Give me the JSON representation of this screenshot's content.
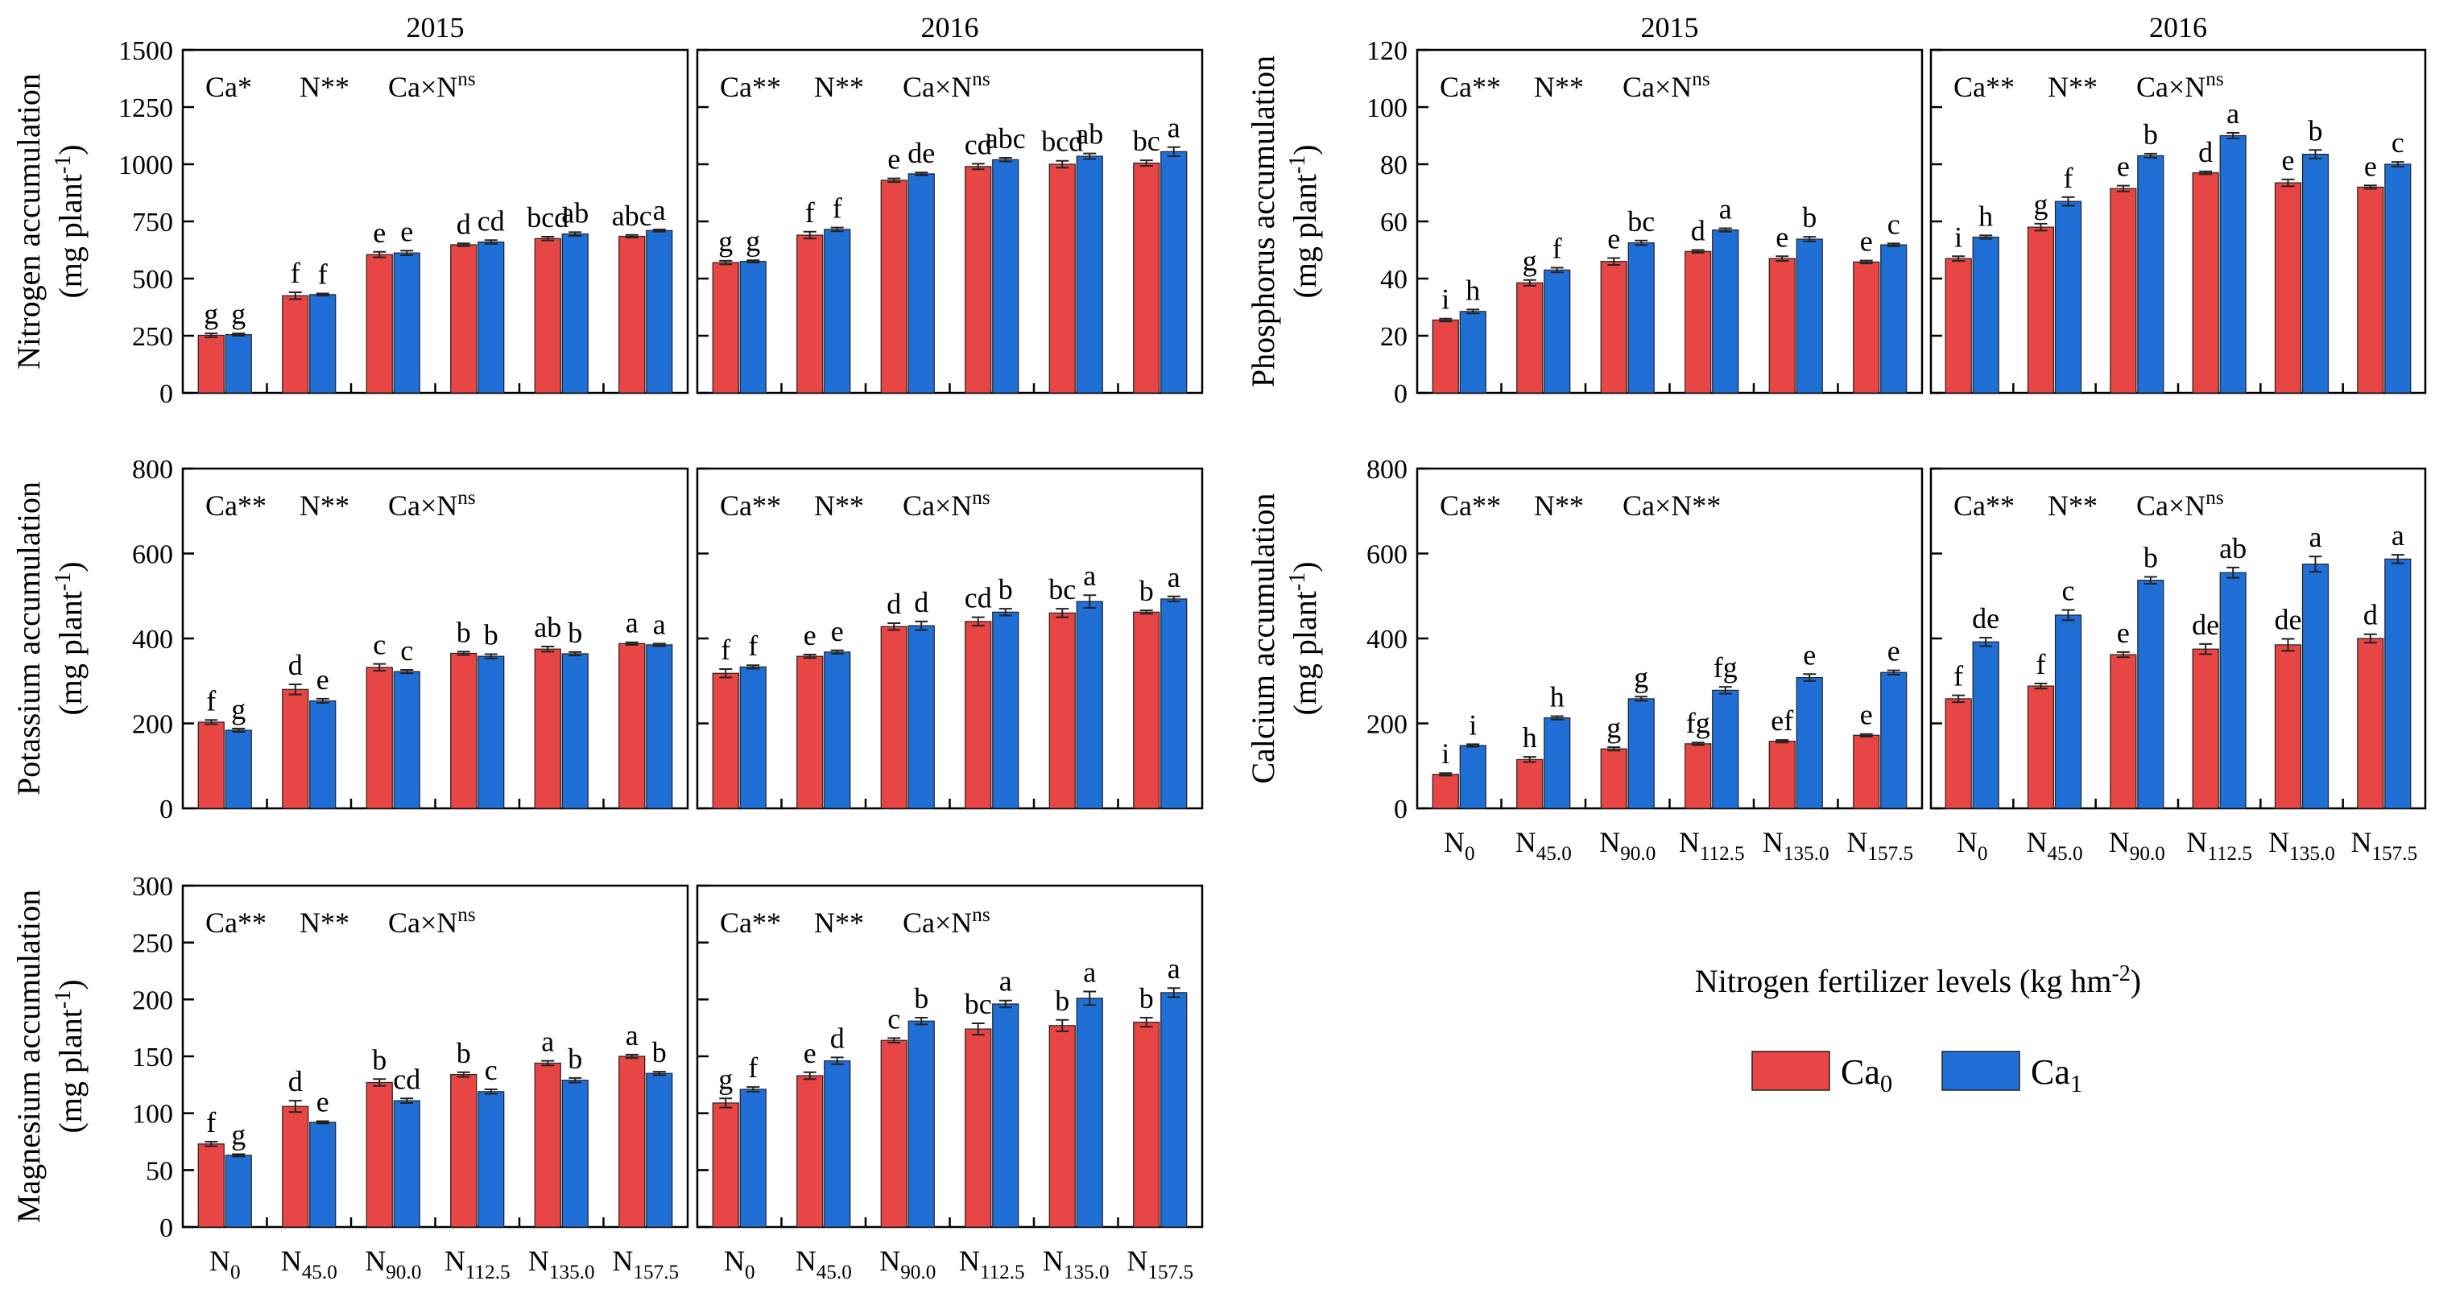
{
  "colors": {
    "ca0": "#e84545",
    "ca1": "#1f6fd6"
  },
  "categories": [
    "N0",
    "N45.0",
    "N90.0",
    "N112.5",
    "N135.0",
    "N157.5"
  ],
  "category_labels": [
    {
      "base": "N",
      "sub": "0"
    },
    {
      "base": "N",
      "sub": "45.0"
    },
    {
      "base": "N",
      "sub": "90.0"
    },
    {
      "base": "N",
      "sub": "112.5"
    },
    {
      "base": "N",
      "sub": "135.0"
    },
    {
      "base": "N",
      "sub": "157.5"
    }
  ],
  "x_axis_title": {
    "text": "Nitrogen fertilizer levels (kg hm",
    "sup": "-2",
    "close": ")"
  },
  "legend": [
    {
      "key": "ca0",
      "base": "Ca",
      "sub": "0"
    },
    {
      "key": "ca1",
      "base": "Ca",
      "sub": "1"
    }
  ],
  "rows": [
    {
      "ylabel": "Nitrogen accumulation",
      "unit": "(mg plant",
      "unit_sup": "-1",
      "unit_close": ")",
      "ylim": [
        0,
        1500
      ],
      "ticks": [
        0,
        250,
        500,
        750,
        1000,
        1250,
        1500
      ]
    },
    {
      "ylabel": "Phosphorus accumulation",
      "unit": "(mg plant",
      "unit_sup": "-1",
      "unit_close": ")",
      "ylim": [
        0,
        120
      ],
      "ticks": [
        0,
        20,
        40,
        60,
        80,
        100,
        120
      ]
    },
    {
      "ylabel": "Potassium accumulation",
      "unit": "(mg plant",
      "unit_sup": "-1",
      "unit_close": ")",
      "ylim": [
        0,
        800
      ],
      "ticks": [
        0,
        200,
        400,
        600,
        800
      ]
    },
    {
      "ylabel": "Calcium accumulation",
      "unit": "(mg plant",
      "unit_sup": "-1",
      "unit_close": ")",
      "ylim": [
        0,
        800
      ],
      "ticks": [
        0,
        200,
        400,
        600,
        800
      ]
    },
    {
      "ylabel": "Magnesium accumulation",
      "unit": "(mg plant",
      "unit_sup": "-1",
      "unit_close": ")",
      "ylim": [
        0,
        300
      ],
      "ticks": [
        0,
        50,
        100,
        150,
        200,
        250,
        300
      ]
    }
  ],
  "chart_data": [
    {
      "type": "bar",
      "row": 0,
      "title": "2015",
      "stats": {
        "ca": "Ca*",
        "n": "N**",
        "inter_base": "Ca×N",
        "inter_sup": "ns"
      },
      "series": [
        {
          "name": "Ca0",
          "values": [
            252,
            425,
            605,
            648,
            675,
            685
          ],
          "err": [
            8,
            15,
            12,
            6,
            8,
            6
          ],
          "letters": [
            "g",
            "f",
            "e",
            "d",
            "bcd",
            "abc"
          ]
        },
        {
          "name": "Ca1",
          "values": [
            255,
            430,
            612,
            660,
            695,
            710
          ],
          "err": [
            5,
            5,
            10,
            8,
            8,
            5
          ],
          "letters": [
            "g",
            "f",
            "e",
            "cd",
            "ab",
            "a"
          ]
        }
      ]
    },
    {
      "type": "bar",
      "row": 0,
      "title": "2016",
      "stats": {
        "ca": "Ca**",
        "n": "N**",
        "inter_base": "Ca×N",
        "inter_sup": "ns"
      },
      "series": [
        {
          "name": "Ca0",
          "values": [
            570,
            690,
            930,
            990,
            1000,
            1005
          ],
          "err": [
            8,
            15,
            8,
            12,
            15,
            12
          ],
          "letters": [
            "g",
            "f",
            "e",
            "cd",
            "bcd",
            "bc"
          ]
        },
        {
          "name": "Ca1",
          "values": [
            575,
            715,
            958,
            1020,
            1035,
            1055
          ],
          "err": [
            5,
            8,
            6,
            8,
            12,
            20
          ],
          "letters": [
            "g",
            "f",
            "de",
            "abc",
            "ab",
            "a"
          ]
        }
      ]
    },
    {
      "type": "bar",
      "row": 1,
      "title": "2015",
      "stats": {
        "ca": "Ca**",
        "n": "N**",
        "inter_base": "Ca×N",
        "inter_sup": "ns"
      },
      "series": [
        {
          "name": "Ca0",
          "values": [
            25.5,
            38.5,
            46,
            49.5,
            47,
            45.8
          ],
          "err": [
            0.5,
            1,
            1.2,
            0.5,
            0.8,
            0.5
          ],
          "letters": [
            "i",
            "g",
            "e",
            "d",
            "e",
            "e"
          ]
        },
        {
          "name": "Ca1",
          "values": [
            28.5,
            43,
            52.5,
            57,
            53.8,
            51.8
          ],
          "err": [
            0.7,
            0.8,
            0.8,
            0.6,
            0.8,
            0.5
          ],
          "letters": [
            "h",
            "f",
            "bc",
            "a",
            "b",
            "c"
          ]
        }
      ]
    },
    {
      "type": "bar",
      "row": 1,
      "title": "2016",
      "stats": {
        "ca": "Ca**",
        "n": "N**",
        "inter_base": "Ca×N",
        "inter_sup": "ns"
      },
      "series": [
        {
          "name": "Ca0",
          "values": [
            47,
            58,
            71.5,
            77,
            73.5,
            72
          ],
          "err": [
            0.8,
            1.2,
            1,
            0.5,
            1.2,
            0.6
          ],
          "letters": [
            "i",
            "g",
            "e",
            "d",
            "e",
            "e"
          ]
        },
        {
          "name": "Ca1",
          "values": [
            54.5,
            67,
            83,
            90,
            83.5,
            80
          ],
          "err": [
            0.6,
            1.5,
            0.7,
            1,
            1.5,
            0.8
          ],
          "letters": [
            "h",
            "f",
            "b",
            "a",
            "b",
            "c"
          ]
        }
      ]
    },
    {
      "type": "bar",
      "row": 2,
      "title": "",
      "stats": {
        "ca": "Ca**",
        "n": "N**",
        "inter_base": "Ca×N",
        "inter_sup": "ns"
      },
      "series": [
        {
          "name": "Ca0",
          "values": [
            203,
            280,
            332,
            365,
            375,
            388
          ],
          "err": [
            5,
            12,
            8,
            4,
            6,
            3
          ],
          "letters": [
            "f",
            "d",
            "c",
            "b",
            "ab",
            "a"
          ]
        },
        {
          "name": "Ca1",
          "values": [
            184,
            253,
            322,
            358,
            364,
            385
          ],
          "err": [
            4,
            5,
            4,
            5,
            4,
            3
          ],
          "letters": [
            "g",
            "e",
            "c",
            "b",
            "b",
            "a"
          ]
        }
      ]
    },
    {
      "type": "bar",
      "row": 2,
      "title": "",
      "stats": {
        "ca": "Ca**",
        "n": "N**",
        "inter_base": "Ca×N",
        "inter_sup": "ns"
      },
      "series": [
        {
          "name": "Ca0",
          "values": [
            318,
            358,
            428,
            440,
            460,
            462
          ],
          "err": [
            10,
            4,
            8,
            10,
            10,
            4
          ],
          "letters": [
            "f",
            "e",
            "d",
            "cd",
            "bc",
            "b"
          ]
        },
        {
          "name": "Ca1",
          "values": [
            333,
            368,
            430,
            462,
            487,
            493
          ],
          "err": [
            4,
            4,
            10,
            8,
            15,
            6
          ],
          "letters": [
            "f",
            "e",
            "d",
            "b",
            "a",
            "a"
          ]
        }
      ]
    },
    {
      "type": "bar",
      "row": 3,
      "title": "",
      "stats": {
        "ca": "Ca**",
        "n": "N**",
        "inter_base": "Ca×N**",
        "inter_sup": ""
      },
      "series": [
        {
          "name": "Ca0",
          "values": [
            80,
            115,
            140,
            152,
            158,
            172
          ],
          "err": [
            3,
            6,
            4,
            3,
            3,
            3
          ],
          "letters": [
            "i",
            "h",
            "g",
            "fg",
            "ef",
            "e"
          ]
        },
        {
          "name": "Ca1",
          "values": [
            148,
            213,
            258,
            278,
            308,
            320
          ],
          "err": [
            3,
            4,
            5,
            8,
            8,
            5
          ],
          "letters": [
            "i",
            "h",
            "g",
            "fg",
            "e",
            "e"
          ]
        }
      ]
    },
    {
      "type": "bar",
      "row": 3,
      "title": "",
      "stats": {
        "ca": "Ca**",
        "n": "N**",
        "inter_base": "Ca×N",
        "inter_sup": "ns"
      },
      "series": [
        {
          "name": "Ca0",
          "values": [
            258,
            288,
            362,
            375,
            385,
            400
          ],
          "err": [
            8,
            6,
            6,
            12,
            14,
            10
          ],
          "letters": [
            "f",
            "f",
            "e",
            "de",
            "de",
            "d"
          ]
        },
        {
          "name": "Ca1",
          "values": [
            392,
            455,
            537,
            555,
            575,
            587
          ],
          "err": [
            10,
            12,
            8,
            12,
            18,
            10
          ],
          "letters": [
            "de",
            "c",
            "b",
            "ab",
            "a",
            "a"
          ]
        }
      ]
    },
    {
      "type": "bar",
      "row": 4,
      "title": "",
      "stats": {
        "ca": "Ca**",
        "n": "N**",
        "inter_base": "Ca×N",
        "inter_sup": "ns"
      },
      "series": [
        {
          "name": "Ca0",
          "values": [
            73,
            106,
            127,
            134,
            144,
            150
          ],
          "err": [
            2,
            5,
            3,
            2,
            2,
            1.5
          ],
          "letters": [
            "f",
            "d",
            "b",
            "b",
            "a",
            "a"
          ]
        },
        {
          "name": "Ca1",
          "values": [
            63,
            92,
            111,
            119,
            129,
            135
          ],
          "err": [
            1,
            1,
            2,
            2,
            2,
            1.5
          ],
          "letters": [
            "g",
            "e",
            "cd",
            "c",
            "b",
            "b"
          ]
        }
      ]
    },
    {
      "type": "bar",
      "row": 4,
      "title": "",
      "stats": {
        "ca": "Ca**",
        "n": "N**",
        "inter_base": "Ca×N",
        "inter_sup": "ns"
      },
      "series": [
        {
          "name": "Ca0",
          "values": [
            109,
            133,
            164,
            174,
            177,
            180
          ],
          "err": [
            4,
            3,
            2,
            5,
            5,
            4
          ],
          "letters": [
            "g",
            "e",
            "c",
            "bc",
            "b",
            "b"
          ]
        },
        {
          "name": "Ca1",
          "values": [
            121,
            146,
            181,
            196,
            201,
            206
          ],
          "err": [
            2,
            3,
            3,
            3,
            6,
            4
          ],
          "letters": [
            "f",
            "d",
            "b",
            "a",
            "a",
            "a"
          ]
        }
      ]
    }
  ]
}
